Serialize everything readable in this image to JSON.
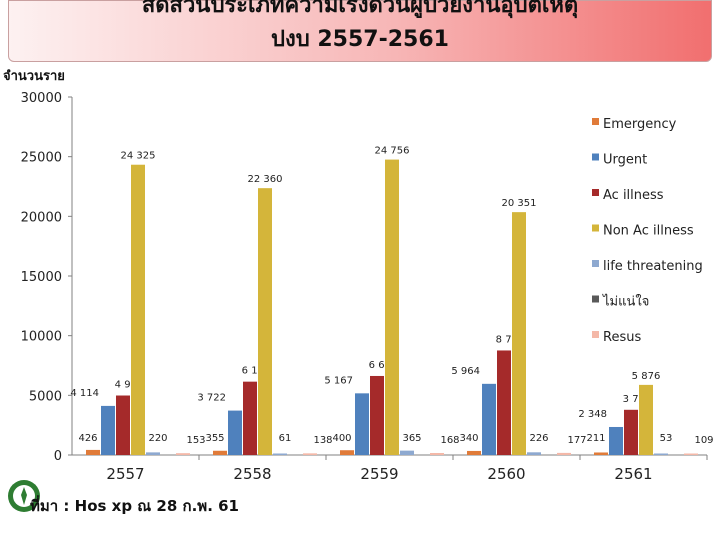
{
  "title": {
    "line1": "สัดส่วนประเภทความเร่งด่วนผู้ป่วยงานอุบัติเหตุ",
    "line2": "ปงบ  2557-2561"
  },
  "ylabel": "จำนวนราย",
  "source": "ที่มา   : Hos xp ณ 28 ก.พ. 61",
  "chart_data": {
    "type": "bar",
    "categories": [
      "2557",
      "2558",
      "2559",
      "2560",
      "2561"
    ],
    "ylim": [
      0,
      30000
    ],
    "yticks": [
      "0",
      "5000",
      "10000",
      "15000",
      "20000",
      "25000",
      "30000"
    ],
    "legend_position": "right",
    "grid": false,
    "series": [
      {
        "name": "Emergency",
        "color": "#e07b39",
        "values": [
          426,
          355,
          400,
          340,
          211
        ],
        "labels": [
          "426",
          "355",
          "400",
          "340",
          "211"
        ]
      },
      {
        "name": "Urgent",
        "color": "#4f81bd",
        "values": [
          4114,
          3722,
          5167,
          5964,
          2348
        ],
        "labels": [
          "4 114",
          "3 722",
          "5 167",
          "5 964",
          "2 348"
        ]
      },
      {
        "name": "Ac illness",
        "color": "#a52a2a",
        "values": [
          4985,
          6146,
          6623,
          8760,
          3788
        ],
        "labels": [
          "4 985",
          "6 146",
          "6 623",
          "8 760",
          "3 788"
        ]
      },
      {
        "name": "Non Ac illness",
        "color": "#d4b53a",
        "values": [
          24325,
          22360,
          24756,
          20351,
          5876
        ],
        "labels": [
          "24 325",
          "22 360",
          "24 756",
          "20 351",
          "5 876"
        ]
      },
      {
        "name": "life threatening",
        "color": "#8ea9d0",
        "values": [
          220,
          61,
          365,
          226,
          53
        ],
        "labels": [
          "220",
          "61",
          "365",
          "226",
          "53"
        ]
      },
      {
        "name": "ไม่แน่ใจ",
        "color": "#595959",
        "values": [
          0,
          0,
          0,
          0,
          0
        ],
        "labels": [
          "",
          "",
          "",
          "",
          ""
        ]
      },
      {
        "name": "Resus",
        "color": "#f4b8a8",
        "values": [
          153,
          138,
          168,
          177,
          109
        ],
        "labels": [
          "153",
          "138",
          "168",
          "177",
          "109"
        ]
      }
    ]
  }
}
